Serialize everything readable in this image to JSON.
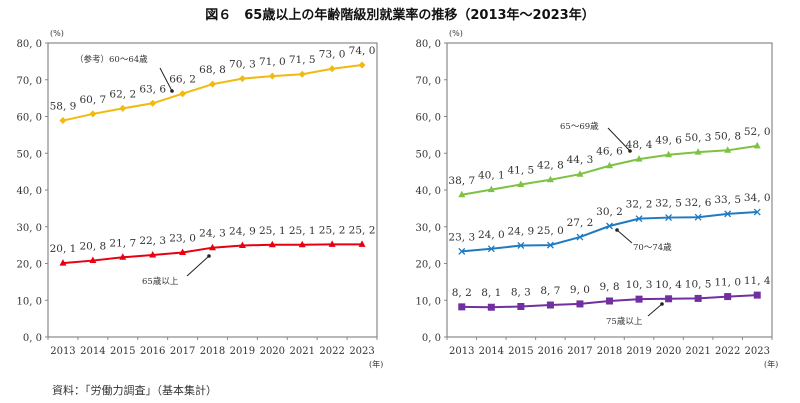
{
  "title": "図６　65歳以上の年齢階級別就業率の推移（2013年～2023年）",
  "source": "資料：「労働力調査」（基本集計）",
  "chart_data": [
    {
      "type": "line",
      "ylabel": "(%)",
      "xlabel": "(年)",
      "ylim": [
        0,
        80
      ],
      "yticks": [
        "0.0",
        "10.0",
        "20.0",
        "30.0",
        "40.0",
        "50.0",
        "60.0",
        "70.0",
        "80.0"
      ],
      "categories": [
        "2013",
        "2014",
        "2015",
        "2016",
        "2017",
        "2018",
        "2019",
        "2020",
        "2021",
        "2022",
        "2023"
      ],
      "grid": false,
      "series": [
        {
          "name": "（参考）60～64歳",
          "color": "#f2b90f",
          "marker": "diamond",
          "values": [
            58.9,
            60.7,
            62.2,
            63.6,
            66.2,
            68.8,
            70.3,
            71.0,
            71.5,
            73.0,
            74.0
          ]
        },
        {
          "name": "65歳以上",
          "color": "#e60012",
          "marker": "triangle",
          "values": [
            20.1,
            20.8,
            21.7,
            22.3,
            23.0,
            24.3,
            24.9,
            25.1,
            25.1,
            25.2,
            25.2
          ]
        }
      ]
    },
    {
      "type": "line",
      "ylabel": "(%)",
      "xlabel": "(年)",
      "ylim": [
        0,
        80
      ],
      "yticks": [
        "0.0",
        "10.0",
        "20.0",
        "30.0",
        "40.0",
        "50.0",
        "60.0",
        "70.0",
        "80.0"
      ],
      "categories": [
        "2013",
        "2014",
        "2015",
        "2016",
        "2017",
        "2018",
        "2019",
        "2020",
        "2021",
        "2022",
        "2023"
      ],
      "grid": false,
      "series": [
        {
          "name": "65～69歳",
          "color": "#7dc242",
          "marker": "triangle",
          "values": [
            38.7,
            40.1,
            41.5,
            42.8,
            44.3,
            46.6,
            48.4,
            49.6,
            50.3,
            50.8,
            52.0
          ]
        },
        {
          "name": "70～74歳",
          "color": "#1f7bc1",
          "marker": "x",
          "values": [
            23.3,
            24.0,
            24.9,
            25.0,
            27.2,
            30.2,
            32.2,
            32.5,
            32.6,
            33.5,
            34.0
          ]
        },
        {
          "name": "75歳以上",
          "color": "#7030a0",
          "marker": "square",
          "values": [
            8.2,
            8.1,
            8.3,
            8.7,
            9.0,
            9.8,
            10.3,
            10.4,
            10.5,
            11.0,
            11.4
          ]
        }
      ]
    }
  ]
}
